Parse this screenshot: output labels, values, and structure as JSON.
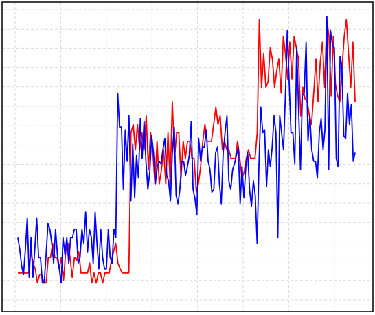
{
  "chart_data": {
    "type": "line",
    "title": "",
    "xlabel": "",
    "ylabel": "",
    "grid": true,
    "legend": "none",
    "xlim": [
      0,
      150
    ],
    "ylim": [
      0,
      1
    ],
    "x_tick_count": 10,
    "y_tick_count": 16,
    "series": [
      {
        "color": "#ff0000",
        "values": [
          0.085,
          0.085,
          0.085,
          0.085,
          0.085,
          0.085,
          0.16,
          0.12,
          0.1,
          0.05,
          0.08,
          0.08,
          0.05,
          0.05,
          0.14,
          0.14,
          0.19,
          0.14,
          0.14,
          0.1,
          0.14,
          0.06,
          0.16,
          0.19,
          0.14,
          0.07,
          0.14,
          0.13,
          0.16,
          0.085,
          0.085,
          0.085,
          0.085,
          0.12,
          0.05,
          0.085,
          0.05,
          0.085,
          0.085,
          0.05,
          0.085,
          0.085,
          0.085,
          0.13,
          0.16,
          0.19,
          0.12,
          0.1,
          0.085,
          0.085,
          0.085,
          0.085,
          0.58,
          0.61,
          0.52,
          0.61,
          0.52,
          0.58,
          0.52,
          0.64,
          0.45,
          0.58,
          0.52,
          0.4,
          0.55,
          0.4,
          0.45,
          0.52,
          0.4,
          0.58,
          0.4,
          0.69,
          0.49,
          0.58,
          0.58,
          0.42,
          0.55,
          0.49,
          0.55,
          0.55,
          0.49,
          0.49,
          0.37,
          0.4,
          0.46,
          0.55,
          0.61,
          0.55,
          0.55,
          0.55,
          0.61,
          0.67,
          0.61,
          0.64,
          0.52,
          0.55,
          0.52,
          0.52,
          0.49,
          0.49,
          0.49,
          0.55,
          0.49,
          0.42,
          0.44,
          0.49,
          0.52,
          0.49,
          0.49,
          0.49,
          0.58,
          0.98,
          0.74,
          0.86,
          0.74,
          0.76,
          0.88,
          0.84,
          0.74,
          0.8,
          0.84,
          0.72,
          0.92,
          0.86,
          0.77,
          0.9,
          0.77,
          0.92,
          0.88,
          0.84,
          0.64,
          0.74,
          0.7,
          0.69,
          0.64,
          0.61,
          0.72,
          0.84,
          0.69,
          0.83,
          0.9,
          0.74,
          0.98,
          0.92,
          0.71,
          0.92,
          0.75,
          0.71,
          0.69,
          0.81,
          0.92,
          0.98,
          0.86,
          0.74,
          0.9,
          0.69
        ]
      },
      {
        "color": "#0000ff",
        "values": [
          0.21,
          0.17,
          0.11,
          0.08,
          0.17,
          0.28,
          0.07,
          0.21,
          0.07,
          0.17,
          0.28,
          0.14,
          0.14,
          0.05,
          0.05,
          0.15,
          0.26,
          0.24,
          0.19,
          0.12,
          0.24,
          0.15,
          0.1,
          0.05,
          0.21,
          0.15,
          0.21,
          0.12,
          0.21,
          0.21,
          0.24,
          0.24,
          0.12,
          0.14,
          0.24,
          0.19,
          0.3,
          0.16,
          0.24,
          0.21,
          0.12,
          0.3,
          0.19,
          0.1,
          0.24,
          0.14,
          0.1,
          0.1,
          0.24,
          0.14,
          0.12,
          0.24,
          0.21,
          0.72,
          0.6,
          0.6,
          0.38,
          0.59,
          0.48,
          0.64,
          0.34,
          0.54,
          0.35,
          0.5,
          0.42,
          0.63,
          0.49,
          0.62,
          0.48,
          0.38,
          0.44,
          0.57,
          0.51,
          0.4,
          0.46,
          0.48,
          0.47,
          0.52,
          0.56,
          0.43,
          0.41,
          0.34,
          0.51,
          0.6,
          0.36,
          0.33,
          0.38,
          0.48,
          0.48,
          0.43,
          0.46,
          0.5,
          0.62,
          0.38,
          0.35,
          0.29,
          0.56,
          0.48,
          0.53,
          0.53,
          0.59,
          0.48,
          0.45,
          0.37,
          0.38,
          0.51,
          0.53,
          0.4,
          0.33,
          0.51,
          0.58,
          0.64,
          0.41,
          0.38,
          0.45,
          0.47,
          0.5,
          0.53,
          0.33,
          0.46,
          0.35,
          0.46,
          0.51,
          0.38,
          0.32,
          0.41,
          0.36,
          0.19,
          0.47,
          0.67,
          0.58,
          0.59,
          0.39,
          0.52,
          0.46,
          0.53,
          0.64,
          0.58,
          0.21,
          0.64,
          0.58,
          0.52,
          0.71,
          0.94,
          0.76,
          0.58,
          0.58,
          0.47,
          0.88,
          0.67,
          0.45,
          0.71,
          0.72,
          0.9,
          0.55,
          0.64,
          0.52,
          0.48,
          0.48,
          0.42,
          0.58,
          0.63,
          0.52,
          0.59,
          0.99,
          0.45,
          0.94,
          0.89,
          0.88,
          0.49,
          0.46,
          0.85,
          0.81,
          0.57,
          0.56,
          0.72,
          0.61,
          0.68,
          0.48,
          0.51
        ]
      }
    ]
  }
}
